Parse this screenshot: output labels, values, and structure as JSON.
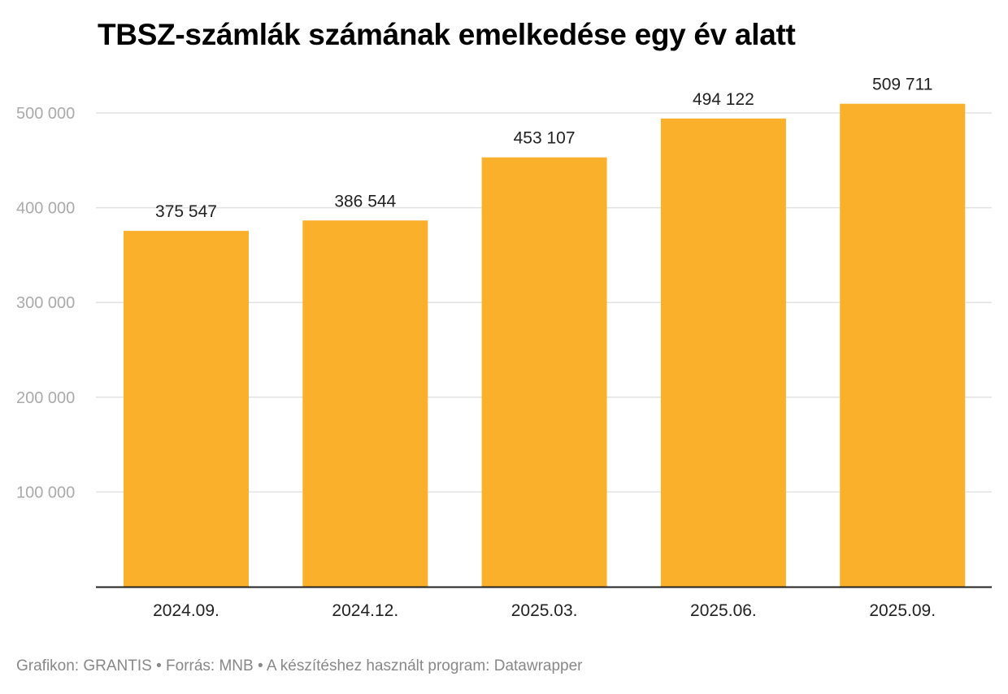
{
  "chart_data": {
    "type": "bar",
    "title": "TBSZ-számlák számának emelkedése egy év alatt",
    "categories": [
      "2024.09.",
      "2024.12.",
      "2025.03.",
      "2025.06.",
      "2025.09."
    ],
    "values": [
      375547,
      386544,
      453107,
      494122,
      509711
    ],
    "data_labels": [
      "375 547",
      "386 544",
      "453 107",
      "494 122",
      "509 711"
    ],
    "ylim": [
      0,
      500000
    ],
    "yticks": [
      100000,
      200000,
      300000,
      400000,
      500000
    ],
    "ytick_labels": [
      "100 000",
      "200 000",
      "300 000",
      "400 000",
      "500 000"
    ],
    "grid": true,
    "bar_color": "#FBB02B",
    "xlabel": "",
    "ylabel": ""
  },
  "footer": "Grafikon: GRANTIS • Forrás: MNB • A készítéshez használt program: Datawrapper"
}
